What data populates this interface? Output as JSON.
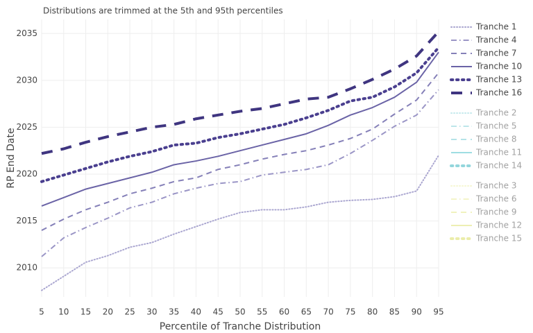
{
  "chart_data": {
    "type": "line",
    "title": "Distributions are trimmed at the 5th and 95th percentiles",
    "x_label": "Percentile of Tranche Distribution",
    "y_label": "RP End Date",
    "x": [
      5,
      10,
      15,
      20,
      25,
      30,
      35,
      40,
      45,
      50,
      55,
      60,
      65,
      70,
      75,
      80,
      85,
      90,
      95
    ],
    "xlim": [
      5,
      95
    ],
    "xticks": [
      5,
      10,
      15,
      20,
      25,
      30,
      35,
      40,
      45,
      50,
      55,
      60,
      65,
      70,
      75,
      80,
      85,
      90,
      95
    ],
    "ylim": [
      2006.9,
      2036.5
    ],
    "yticks": [
      2010,
      2015,
      2020,
      2025,
      2030,
      2035
    ],
    "grid": true,
    "legend": "right",
    "series": [
      {
        "name": "Tranche 1",
        "color": "#aaa6d0",
        "dash": "dot",
        "width": 2,
        "visible": true,
        "values": [
          2007.6,
          2009.1,
          2010.6,
          2011.3,
          2012.2,
          2012.7,
          2013.6,
          2014.4,
          2015.2,
          2015.9,
          2016.2,
          2016.2,
          2016.5,
          2017.0,
          2017.2,
          2017.3,
          2017.6,
          2018.2,
          2022.0
        ]
      },
      {
        "name": "Tranche 4",
        "color": "#9a95c6",
        "dash": "dashdot",
        "width": 2,
        "visible": true,
        "values": [
          2011.2,
          2013.2,
          2014.3,
          2015.3,
          2016.4,
          2017.0,
          2017.9,
          2018.5,
          2019.0,
          2019.2,
          2019.9,
          2020.2,
          2020.5,
          2021.0,
          2022.2,
          2023.6,
          2025.1,
          2026.3,
          2029.0
        ]
      },
      {
        "name": "Tranche 7",
        "color": "#8580b8",
        "dash": "dash",
        "width": 2,
        "visible": true,
        "values": [
          2014.0,
          2015.2,
          2016.2,
          2017.0,
          2017.9,
          2018.5,
          2019.2,
          2019.6,
          2020.5,
          2021.0,
          2021.6,
          2022.1,
          2022.5,
          2023.1,
          2023.8,
          2024.8,
          2026.4,
          2027.9,
          2030.8
        ]
      },
      {
        "name": "Tranche 10",
        "color": "#6a63a6",
        "dash": "solid",
        "width": 2,
        "visible": true,
        "values": [
          2016.6,
          2017.5,
          2018.4,
          2019.0,
          2019.6,
          2020.2,
          2021.0,
          2021.4,
          2021.9,
          2022.5,
          2023.1,
          2023.7,
          2024.3,
          2025.2,
          2026.3,
          2027.1,
          2028.2,
          2029.8,
          2033.0
        ]
      },
      {
        "name": "Tranche 13",
        "color": "#4a3f8f",
        "dash": "dot",
        "width": 4,
        "visible": true,
        "values": [
          2019.2,
          2019.9,
          2020.6,
          2021.3,
          2021.9,
          2022.4,
          2023.1,
          2023.3,
          2023.9,
          2024.3,
          2024.8,
          2025.3,
          2026.0,
          2026.8,
          2027.8,
          2028.2,
          2029.3,
          2030.8,
          2033.5
        ]
      },
      {
        "name": "Tranche 16",
        "color": "#3f3580",
        "dash": "dash",
        "width": 4,
        "visible": true,
        "values": [
          2022.2,
          2022.7,
          2023.4,
          2024.0,
          2024.5,
          2025.0,
          2025.3,
          2025.9,
          2026.3,
          2026.7,
          2027.0,
          2027.5,
          2028.0,
          2028.2,
          2029.1,
          2030.1,
          2031.2,
          2032.6,
          2035.2
        ]
      },
      {
        "name": "Tranche 2",
        "color": "#8fd6dc",
        "dash": "dot",
        "width": 2,
        "visible": false,
        "values": [
          null,
          null,
          null,
          null,
          null,
          null,
          null,
          null,
          null,
          null,
          null,
          null,
          null,
          null,
          null,
          null,
          null,
          null,
          null
        ]
      },
      {
        "name": "Tranche 5",
        "color": "#7dcfd6",
        "dash": "dashdot",
        "width": 2,
        "visible": false,
        "values": [
          null,
          null,
          null,
          null,
          null,
          null,
          null,
          null,
          null,
          null,
          null,
          null,
          null,
          null,
          null,
          null,
          null,
          null,
          null
        ]
      },
      {
        "name": "Tranche 8",
        "color": "#6cc9d1",
        "dash": "dash",
        "width": 2,
        "visible": false,
        "values": [
          null,
          null,
          null,
          null,
          null,
          null,
          null,
          null,
          null,
          null,
          null,
          null,
          null,
          null,
          null,
          null,
          null,
          null,
          null
        ]
      },
      {
        "name": "Tranche 11",
        "color": "#3fbcc6",
        "dash": "solid",
        "width": 2,
        "visible": false,
        "values": [
          null,
          null,
          null,
          null,
          null,
          null,
          null,
          null,
          null,
          null,
          null,
          null,
          null,
          null,
          null,
          null,
          null,
          null,
          null
        ]
      },
      {
        "name": "Tranche 14",
        "color": "#2aaebb",
        "dash": "dot",
        "width": 4,
        "visible": false,
        "values": [
          null,
          null,
          null,
          null,
          null,
          null,
          null,
          null,
          null,
          null,
          null,
          null,
          null,
          null,
          null,
          null,
          null,
          null,
          null
        ]
      },
      {
        "name": "Tranche 3",
        "color": "#eef0a8",
        "dash": "dot",
        "width": 2,
        "visible": false,
        "values": [
          null,
          null,
          null,
          null,
          null,
          null,
          null,
          null,
          null,
          null,
          null,
          null,
          null,
          null,
          null,
          null,
          null,
          null,
          null
        ]
      },
      {
        "name": "Tranche 6",
        "color": "#e8eb94",
        "dash": "dashdot",
        "width": 2,
        "visible": false,
        "values": [
          null,
          null,
          null,
          null,
          null,
          null,
          null,
          null,
          null,
          null,
          null,
          null,
          null,
          null,
          null,
          null,
          null,
          null,
          null
        ]
      },
      {
        "name": "Tranche 9",
        "color": "#e3e67f",
        "dash": "dash",
        "width": 2,
        "visible": false,
        "values": [
          null,
          null,
          null,
          null,
          null,
          null,
          null,
          null,
          null,
          null,
          null,
          null,
          null,
          null,
          null,
          null,
          null,
          null,
          null
        ]
      },
      {
        "name": "Tranche 12",
        "color": "#dde16a",
        "dash": "solid",
        "width": 2,
        "visible": false,
        "values": [
          null,
          null,
          null,
          null,
          null,
          null,
          null,
          null,
          null,
          null,
          null,
          null,
          null,
          null,
          null,
          null,
          null,
          null,
          null
        ]
      },
      {
        "name": "Tranche 15",
        "color": "#d8dc58",
        "dash": "dot",
        "width": 4,
        "visible": false,
        "values": [
          null,
          null,
          null,
          null,
          null,
          null,
          null,
          null,
          null,
          null,
          null,
          null,
          null,
          null,
          null,
          null,
          null,
          null,
          null
        ]
      }
    ]
  }
}
